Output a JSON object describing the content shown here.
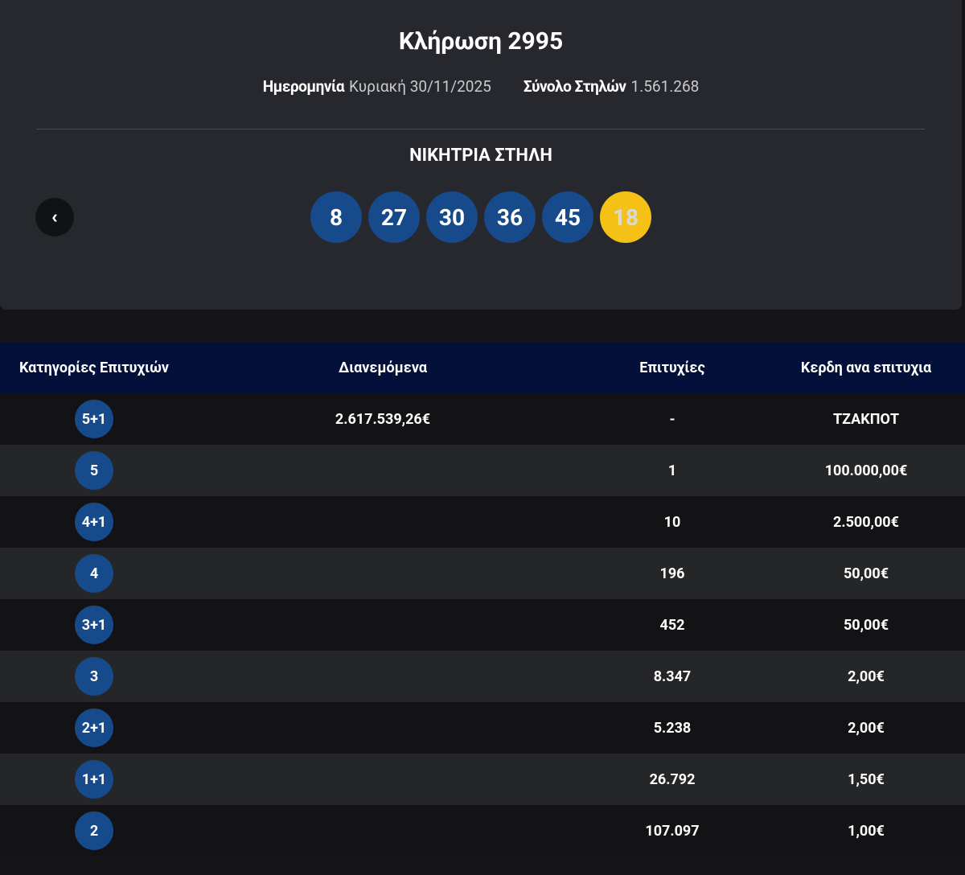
{
  "header": {
    "title": "Κλήρωση 2995",
    "date_label": "Ημερομηνία",
    "date": "Κυριακή 30/11/2025",
    "columns_label": "Σύνολο Στηλών",
    "columns": "1.561.268"
  },
  "winning": {
    "title": "ΝΙΚΗΤΡΙΑ ΣΤΗΛΗ",
    "numbers": [
      8,
      27,
      30,
      36,
      45
    ],
    "joker": 18
  },
  "back_button": "‹",
  "table": {
    "columns": [
      "Κατηγορίες Επιτυχιών",
      "Διανεμόμενα",
      "Επιτυχίες",
      "Κερδη ανα επιτυχια"
    ],
    "rows": [
      {
        "category": "5+1",
        "distributed": "2.617.539,26€",
        "winners": "-",
        "prize": "ΤΖΑΚΠΟΤ"
      },
      {
        "category": "5",
        "winners": "1",
        "prize": "100.000,00€"
      },
      {
        "category": "4+1",
        "winners": "10",
        "prize": "2.500,00€"
      },
      {
        "category": "4",
        "winners": "196",
        "prize": "50,00€"
      },
      {
        "category": "3+1",
        "winners": "452",
        "prize": "50,00€"
      },
      {
        "category": "3",
        "winners": "8.347",
        "prize": "2,00€"
      },
      {
        "category": "2+1",
        "winners": "5.238",
        "prize": "2,00€"
      },
      {
        "category": "1+1",
        "winners": "26.792",
        "prize": "1,50€"
      },
      {
        "category": "2",
        "winners": "107.097",
        "prize": "1,00€"
      }
    ]
  }
}
